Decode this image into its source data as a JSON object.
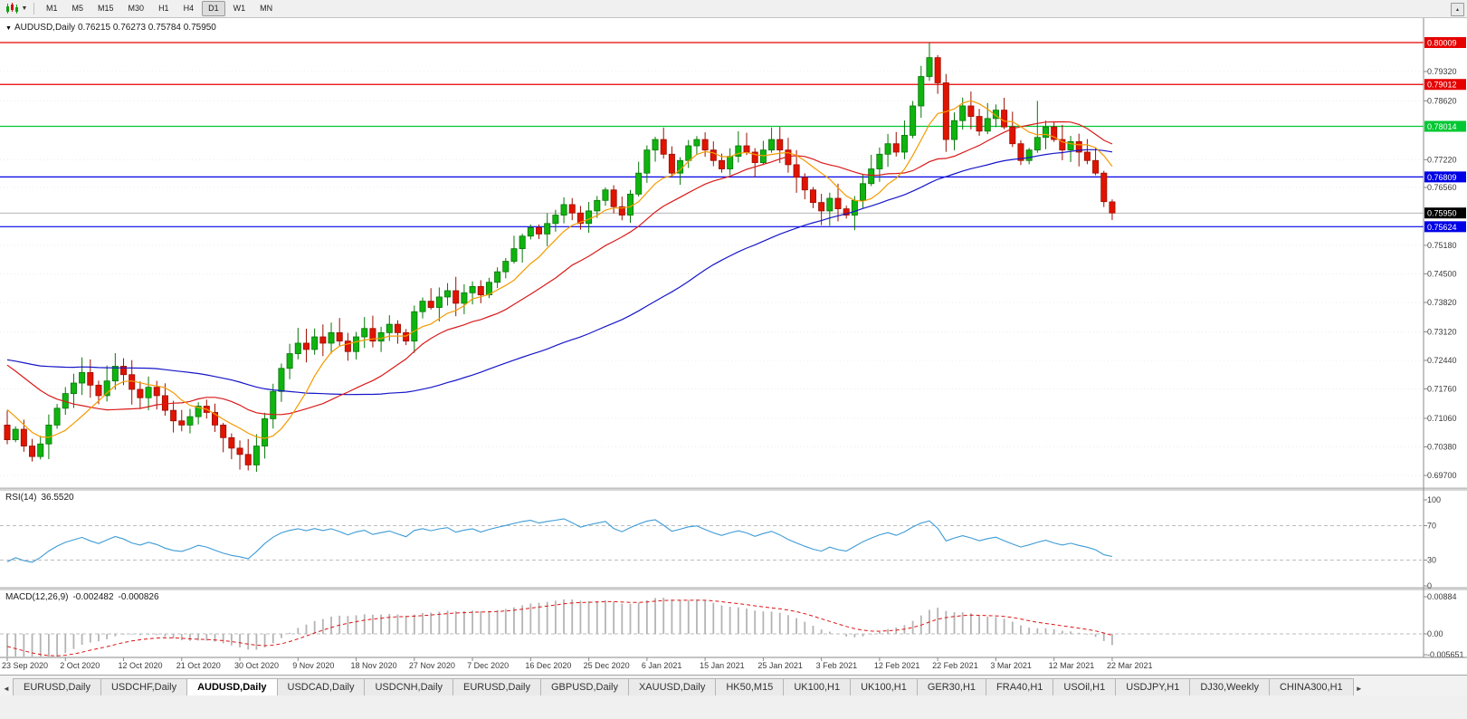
{
  "toolbar": {
    "timeframes": [
      "M1",
      "M5",
      "M15",
      "M30",
      "H1",
      "H4",
      "D1",
      "W1",
      "MN"
    ],
    "active_timeframe": "D1",
    "chart_type_icon": "candlestick-chart-icon",
    "dropdown_icon": "chevron-down-icon"
  },
  "chart_title": {
    "text": "AUDUSD,Daily 0.76215 0.76273 0.75784 0.75950",
    "symbol_period": "AUDUSD,Daily"
  },
  "indicators": {
    "rsi": {
      "title": "RSI(14)",
      "value": "36.5520",
      "period": 14,
      "line_color": "#3d9bd5",
      "levels": [
        70,
        30
      ],
      "scale": [
        {
          "label": "100",
          "value": 100
        },
        {
          "label": "70",
          "value": 70
        },
        {
          "label": "30",
          "value": 30
        },
        {
          "label": "0",
          "value": 0
        }
      ]
    },
    "macd": {
      "title": "MACD(12,26,9)",
      "value_main": "-0.002482",
      "value_signal": "-0.000826",
      "histogram_color": "#b4b4b4",
      "signal_color": "#dc1414",
      "scale": [
        {
          "label": "0.00884",
          "value": 0.00884
        },
        {
          "label": "0.00",
          "value": 0
        },
        {
          "label": "-0.005651",
          "value": -0.005651
        }
      ]
    }
  },
  "chart_data": {
    "type": "candlestick",
    "symbol": "AUDUSD",
    "timeframe": "Daily",
    "up_color": "#0fb40f",
    "down_color": "#e01400",
    "x_tick_labels": [
      "23 Sep 2020",
      "2 Oct 2020",
      "12 Oct 2020",
      "21 Oct 2020",
      "30 Oct 2020",
      "9 Nov 2020",
      "18 Nov 2020",
      "27 Nov 2020",
      "7 Dec 2020",
      "16 Dec 2020",
      "25 Dec 2020",
      "6 Jan 2021",
      "15 Jan 2021",
      "25 Jan 2021",
      "3 Feb 2021",
      "12 Feb 2021",
      "22 Feb 2021",
      "3 Mar 2021",
      "12 Mar 2021",
      "22 Mar 2021"
    ],
    "label_every_n_candles": 7,
    "current_bar": {
      "open": 0.76215,
      "high": 0.76273,
      "low": 0.75784,
      "close": 0.7595
    },
    "pre_closes": [
      0.716,
      0.7185,
      0.721,
      0.7195,
      0.717,
      0.7205,
      0.723,
      0.7215,
      0.724,
      0.722,
      0.719,
      0.7165,
      0.7195,
      0.722,
      0.725,
      0.7235,
      0.721,
      0.724,
      0.7265,
      0.729,
      0.731,
      0.7285,
      0.726,
      0.73,
      0.733,
      0.7355,
      0.734,
      0.731,
      0.7335,
      0.736,
      0.7385,
      0.737,
      0.7345,
      0.732,
      0.735,
      0.733,
      0.7305,
      0.728,
      0.731,
      0.729,
      0.726,
      0.723,
      0.725,
      0.722,
      0.719,
      0.716,
      0.713,
      0.71,
      0.707,
      0.709
    ],
    "closes": [
      0.7055,
      0.708,
      0.704,
      0.7015,
      0.7045,
      0.709,
      0.713,
      0.7165,
      0.719,
      0.7215,
      0.7185,
      0.716,
      0.7195,
      0.723,
      0.721,
      0.7175,
      0.7155,
      0.718,
      0.716,
      0.7125,
      0.71,
      0.709,
      0.711,
      0.7135,
      0.712,
      0.709,
      0.706,
      0.7035,
      0.702,
      0.6995,
      0.704,
      0.7105,
      0.717,
      0.7225,
      0.726,
      0.7285,
      0.727,
      0.73,
      0.7285,
      0.731,
      0.729,
      0.7265,
      0.73,
      0.732,
      0.729,
      0.731,
      0.733,
      0.731,
      0.729,
      0.736,
      0.7385,
      0.737,
      0.7395,
      0.741,
      0.738,
      0.7405,
      0.742,
      0.74,
      0.743,
      0.7455,
      0.748,
      0.751,
      0.754,
      0.756,
      0.7545,
      0.757,
      0.759,
      0.7615,
      0.7595,
      0.757,
      0.76,
      0.7625,
      0.765,
      0.761,
      0.759,
      0.764,
      0.769,
      0.7745,
      0.777,
      0.7735,
      0.769,
      0.772,
      0.7755,
      0.777,
      0.7745,
      0.772,
      0.77,
      0.773,
      0.7755,
      0.774,
      0.7715,
      0.7745,
      0.777,
      0.7745,
      0.771,
      0.768,
      0.765,
      0.762,
      0.76,
      0.763,
      0.7605,
      0.759,
      0.7625,
      0.7665,
      0.77,
      0.7735,
      0.776,
      0.774,
      0.778,
      0.785,
      0.792,
      0.7965,
      0.7905,
      0.777,
      0.7815,
      0.785,
      0.7825,
      0.779,
      0.782,
      0.784,
      0.78,
      0.776,
      0.772,
      0.7745,
      0.7775,
      0.78,
      0.777,
      0.7745,
      0.7765,
      0.774,
      0.772,
      0.769,
      0.7622,
      0.7595
    ],
    "high_overrides": {
      "111": 0.8001,
      "124": 0.7862
    },
    "low_overrides": {
      "29": 0.6982
    },
    "moving_averages": [
      {
        "name": "ma-fast",
        "period": 8,
        "color": "#f59a00"
      },
      {
        "name": "ma-mid",
        "period": 20,
        "color": "#d91a1a"
      },
      {
        "name": "ma-slow",
        "period": 55,
        "color": "#1616c8"
      }
    ],
    "y_axis_ticks": [
      0.7932,
      0.7862,
      0.7722,
      0.7656,
      0.7518,
      0.745,
      0.7382,
      0.7312,
      0.7244,
      0.7176,
      0.7106,
      0.7038,
      0.697
    ],
    "levels": [
      {
        "value": 0.80009,
        "label": "0.80009",
        "color": "#e60000"
      },
      {
        "value": 0.79012,
        "label": "0.79012",
        "color": "#e60000"
      },
      {
        "value": 0.78014,
        "label": "0.78014",
        "color": "#00c832"
      },
      {
        "value": 0.76809,
        "label": "0.76809",
        "color": "#0000e6"
      },
      {
        "value": 0.75624,
        "label": "0.75624",
        "color": "#0000e6"
      }
    ],
    "current_price": {
      "value": 0.7595,
      "label": "0.75950",
      "color": "#000000"
    }
  },
  "tabs": {
    "items": [
      "EURUSD,Daily",
      "USDCHF,Daily",
      "AUDUSD,Daily",
      "USDCAD,Daily",
      "USDCNH,Daily",
      "EURUSD,Daily",
      "GBPUSD,Daily",
      "XAUUSD,Daily",
      "HK50,M15",
      "UK100,H1",
      "UK100,H1",
      "GER30,H1",
      "FRA40,H1",
      "USOil,H1",
      "USDJPY,H1",
      "DJ30,Weekly",
      "CHINA300,H1"
    ],
    "active_index": 2
  }
}
